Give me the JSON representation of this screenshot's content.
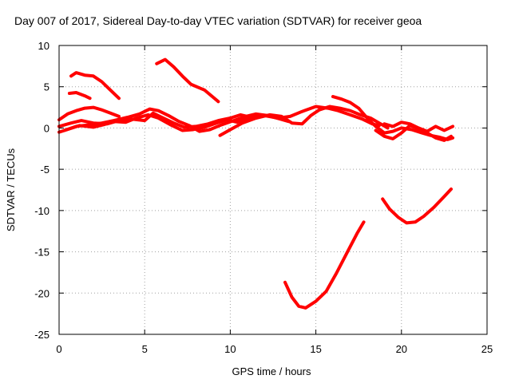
{
  "chart_data": {
    "type": "line",
    "title": "Day 007 of 2017, Sidereal Day-to-day VTEC variation (SDTVAR) for receiver geoa",
    "xlabel": "GPS time / hours",
    "ylabel": "SDTVAR / TECUs",
    "xlim": [
      0,
      25
    ],
    "ylim": [
      -25,
      10
    ],
    "xticks": [
      0,
      5,
      10,
      15,
      20,
      25
    ],
    "yticks": [
      -25,
      -20,
      -15,
      -10,
      -5,
      0,
      5,
      10
    ],
    "xtick_labels": [
      "0",
      "5",
      "10",
      "15",
      "20",
      "25"
    ],
    "ytick_labels": [
      "-25",
      "-20",
      "-15",
      "-10",
      "-5",
      "0",
      "5",
      "10"
    ],
    "grid": true,
    "color": "#ff0000",
    "series": [
      {
        "name": "s1",
        "x": [
          0.7,
          1.0,
          1.5,
          2.0,
          2.5,
          3.0,
          3.5
        ],
        "y": [
          6.3,
          6.7,
          6.4,
          6.3,
          5.6,
          4.6,
          3.6
        ]
      },
      {
        "name": "s2",
        "x": [
          0.6,
          1.0,
          1.5,
          1.8
        ],
        "y": [
          4.2,
          4.3,
          3.9,
          3.6
        ]
      },
      {
        "name": "s3",
        "x": [
          5.7,
          6.2,
          6.7,
          7.2,
          7.7,
          8.5,
          9.3
        ],
        "y": [
          7.8,
          8.3,
          7.4,
          6.3,
          5.3,
          4.6,
          3.2
        ]
      },
      {
        "name": "s4",
        "x": [
          0.0,
          0.5,
          1.0,
          1.5,
          2.0,
          2.5,
          3.0,
          3.5
        ],
        "y": [
          1.0,
          1.7,
          2.1,
          2.4,
          2.5,
          2.2,
          1.8,
          1.4
        ]
      },
      {
        "name": "s5",
        "x": [
          0.0,
          0.7,
          1.3,
          2.0,
          2.8,
          3.5,
          4.2,
          5.0,
          5.5,
          6.0,
          6.7,
          7.3,
          8.0,
          8.7,
          9.3,
          10.0,
          10.6,
          11.2,
          12.0,
          12.8,
          13.5,
          14.2,
          15.0,
          15.7,
          16.3,
          17.0,
          17.7,
          18.3,
          18.7
        ],
        "y": [
          0.2,
          0.6,
          0.9,
          0.6,
          0.5,
          0.9,
          1.1,
          0.9,
          1.8,
          1.3,
          0.6,
          0.1,
          0.2,
          0.5,
          0.9,
          1.2,
          1.6,
          1.3,
          1.5,
          1.2,
          1.4,
          2.0,
          2.6,
          2.4,
          2.1,
          1.6,
          1.1,
          0.5,
          0.3
        ]
      },
      {
        "name": "s6",
        "x": [
          0.3,
          1.0,
          1.8,
          2.5,
          3.2,
          4.0,
          4.7,
          5.3,
          5.8,
          6.4,
          7.0,
          7.6,
          8.2,
          8.8,
          9.5,
          10.2,
          10.9,
          11.5,
          12.2,
          12.9,
          13.4
        ],
        "y": [
          -0.3,
          0.2,
          0.4,
          0.6,
          0.9,
          1.3,
          1.7,
          2.3,
          2.1,
          1.5,
          0.8,
          0.3,
          -0.4,
          -0.2,
          0.4,
          0.9,
          1.4,
          1.7,
          1.5,
          1.1,
          0.8
        ]
      },
      {
        "name": "s7",
        "x": [
          0.0,
          0.6,
          1.2,
          2.0,
          2.6,
          3.2,
          3.9,
          4.5,
          5.2,
          5.8,
          6.5,
          7.2,
          7.8,
          8.5,
          9.2,
          9.8,
          10.4,
          11.0,
          11.6
        ],
        "y": [
          -0.5,
          -0.1,
          0.3,
          0.1,
          0.4,
          0.8,
          0.7,
          1.2,
          1.6,
          1.2,
          0.4,
          -0.3,
          -0.2,
          0.1,
          0.6,
          1.0,
          0.7,
          1.2,
          1.5
        ]
      },
      {
        "name": "s8",
        "x": [
          9.4,
          10.0,
          10.7,
          11.5,
          12.3,
          13.0,
          13.6,
          14.2,
          14.7,
          15.2,
          15.8,
          16.4,
          17.0,
          17.6,
          18.2,
          18.7,
          19.2
        ],
        "y": [
          -0.9,
          -0.2,
          0.6,
          1.2,
          1.6,
          1.4,
          0.6,
          0.5,
          1.5,
          2.2,
          2.6,
          2.4,
          2.1,
          1.6,
          1.2,
          0.6,
          0.0
        ]
      },
      {
        "name": "s9",
        "x": [
          13.2,
          13.6,
          14.0,
          14.4,
          15.0,
          15.6,
          16.2,
          16.8,
          17.4,
          17.8
        ],
        "y": [
          -18.7,
          -20.5,
          -21.6,
          -21.8,
          -21.0,
          -19.8,
          -17.6,
          -15.2,
          -12.8,
          -11.4
        ]
      },
      {
        "name": "s10",
        "x": [
          18.9,
          19.3,
          19.8,
          20.3,
          20.8,
          21.3,
          21.9,
          22.5,
          22.9
        ],
        "y": [
          -8.6,
          -9.8,
          -10.8,
          -11.5,
          -11.4,
          -10.7,
          -9.6,
          -8.3,
          -7.4
        ]
      },
      {
        "name": "s11",
        "x": [
          16.0,
          16.5,
          17.0,
          17.5,
          18.0,
          18.5,
          19.0,
          19.5,
          20.0,
          20.6,
          21.2,
          21.7,
          22.2,
          22.7,
          23.0
        ],
        "y": [
          3.8,
          3.5,
          3.1,
          2.4,
          1.2,
          0.2,
          -0.6,
          -0.4,
          0.0,
          -0.2,
          -0.6,
          -0.9,
          -1.1,
          -1.4,
          -1.2
        ]
      },
      {
        "name": "s12",
        "x": [
          18.5,
          19.0,
          19.5,
          20.0,
          20.5,
          21.0,
          21.5,
          22.0,
          22.5,
          22.9
        ],
        "y": [
          -0.3,
          -1.0,
          -1.3,
          -0.6,
          0.3,
          -0.1,
          -0.6,
          -1.2,
          -1.5,
          -1.0
        ]
      },
      {
        "name": "s13",
        "x": [
          19.0,
          19.5,
          20.0,
          20.5,
          21.0,
          21.5,
          22.0,
          22.5,
          23.0
        ],
        "y": [
          0.5,
          0.2,
          0.7,
          0.5,
          0.0,
          -0.4,
          0.2,
          -0.3,
          0.2
        ]
      }
    ]
  }
}
